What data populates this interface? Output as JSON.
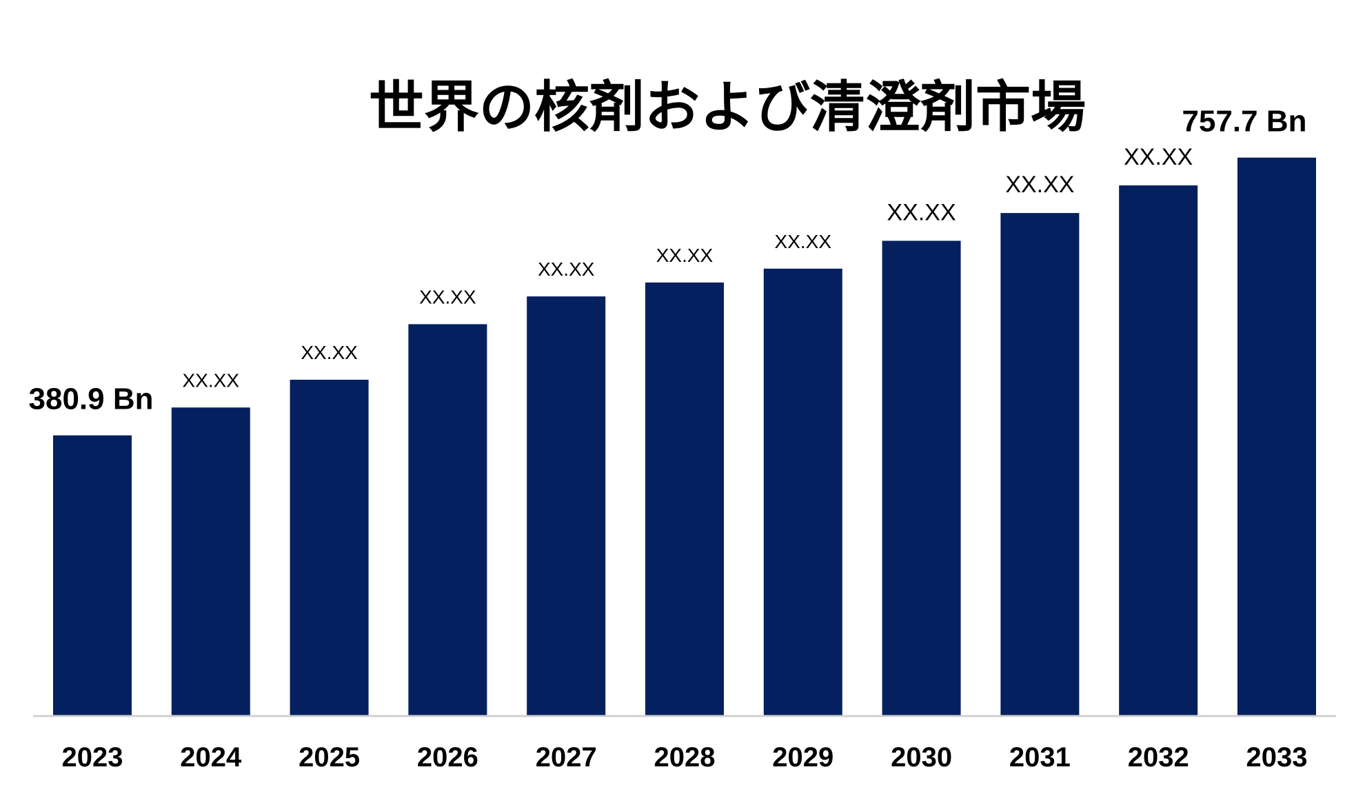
{
  "chart_data": {
    "type": "bar",
    "title": "世界の核剤および清澄剤市場",
    "xlabel": "",
    "ylabel": "",
    "categories": [
      "2023",
      "2024",
      "2025",
      "2026",
      "2027",
      "2028",
      "2029",
      "2030",
      "2031",
      "2032",
      "2033"
    ],
    "values": [
      380.9,
      418.6,
      456.3,
      531.7,
      569.4,
      588.3,
      607.1,
      644.8,
      682.5,
      720.0,
      757.7
    ],
    "data_labels": [
      "380.9 Bn",
      "XX.XX",
      "XX.XX",
      "XX.XX",
      "XX.XX",
      "XX.XX",
      "XX.XX",
      "XX.XX",
      "XX.XX",
      "XX.XX",
      "757.7 Bn"
    ],
    "ylim": [
      0,
      850
    ],
    "grid": false,
    "legend": "none",
    "colors": {
      "bar": "#04205f",
      "axis": "#d0d0d0",
      "text": "#000000"
    }
  }
}
